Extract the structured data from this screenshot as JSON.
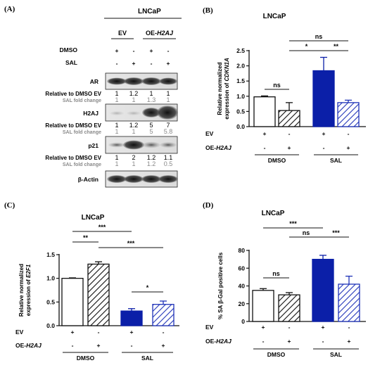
{
  "colors": {
    "blue": "#0b1fa8",
    "stripe_blue": "#1f33b8",
    "black": "#111111",
    "grey": "#8a8a8a"
  },
  "panel_a": {
    "letter": "(A)",
    "cell_line": "LNCaP",
    "group_ev": "EV",
    "group_oe_prefix": "OE-",
    "group_oe_gene": "H2AJ",
    "row_dmso": "DMSO",
    "row_sal": "SAL",
    "dmso_signs": [
      "+",
      "-",
      "+",
      "-"
    ],
    "sal_signs": [
      "-",
      "+",
      "-",
      "+"
    ],
    "blots": [
      {
        "name": "AR",
        "rel_label": "Relative to DMSO EV",
        "rel": [
          "1",
          "1.2",
          "1",
          "1"
        ],
        "fold_label": "SAL fold change",
        "fold": [
          "1",
          "1",
          "1.3",
          "1"
        ]
      },
      {
        "name": "H2AJ",
        "rel_label": "Relative to DMSO EV",
        "rel": [
          "1",
          "1.2",
          "5",
          "7"
        ],
        "fold_label": "SAL fold change",
        "fold": [
          "1",
          "1",
          "5",
          "5.8"
        ]
      },
      {
        "name": "p21",
        "rel_label": "Relative to DMSO EV",
        "rel": [
          "1",
          "2",
          "1.2",
          "1.1"
        ],
        "fold_label": "SAL fold change",
        "fold": [
          "1",
          "1",
          "1.2",
          "0.5"
        ]
      },
      {
        "name": "β-Actin"
      }
    ]
  },
  "chart_data": [
    {
      "panel": "(B)",
      "type": "bar",
      "title": "LNCaP",
      "ylabel_line1": "Relative normalized",
      "ylabel_prefix": "expression of ",
      "ylabel_gene": "CDKN1A",
      "ylim": [
        0,
        2.5
      ],
      "yticks": [
        "0.0",
        "0.5",
        "1.0",
        "1.5",
        "2.0",
        "2.5"
      ],
      "categories": [
        "DMSO EV",
        "DMSO OE-H2AJ",
        "SAL EV",
        "SAL OE-H2AJ"
      ],
      "values": [
        0.98,
        0.53,
        1.84,
        0.79
      ],
      "errors": [
        0.03,
        0.26,
        0.44,
        0.08
      ],
      "ev_signs": [
        "+",
        "-",
        "+",
        "-"
      ],
      "oe_signs": [
        "-",
        "+",
        "-",
        "+"
      ],
      "row_ev": "EV",
      "row_oe_prefix": "OE-",
      "row_oe_gene": "H2AJ",
      "groups": [
        "DMSO",
        "SAL"
      ],
      "significance": [
        {
          "from": 0,
          "to": 1,
          "label": "ns"
        },
        {
          "from": 1,
          "to": 2,
          "label": "*"
        },
        {
          "from": 2,
          "to": 3,
          "label": "**"
        },
        {
          "from": 1,
          "to": 3,
          "label": "ns"
        }
      ]
    },
    {
      "panel": "(C)",
      "type": "bar",
      "title": "LNCaP",
      "ylabel_line1": "Relative normalized",
      "ylabel_prefix": "expression of ",
      "ylabel_gene": "E2F1",
      "ylim": [
        0,
        1.5
      ],
      "yticks": [
        "0.0",
        "0.5",
        "1.0",
        "1.5"
      ],
      "categories": [
        "DMSO EV",
        "DMSO OE-H2AJ",
        "SAL EV",
        "SAL OE-H2AJ"
      ],
      "values": [
        1.0,
        1.3,
        0.31,
        0.45
      ],
      "errors": [
        0.01,
        0.05,
        0.05,
        0.07
      ],
      "ev_signs": [
        "+",
        "-",
        "+",
        "-"
      ],
      "oe_signs": [
        "-",
        "+",
        "-",
        "+"
      ],
      "row_ev": "EV",
      "row_oe_prefix": "OE-",
      "row_oe_gene": "H2AJ",
      "groups": [
        "DMSO",
        "SAL"
      ],
      "significance": [
        {
          "from": 0,
          "to": 1,
          "label": "**"
        },
        {
          "from": 0,
          "to": 2,
          "label": "***"
        },
        {
          "from": 1,
          "to": 3,
          "label": "***"
        },
        {
          "from": 2,
          "to": 3,
          "label": "*"
        }
      ]
    },
    {
      "panel": "(D)",
      "type": "bar",
      "title": "LNCaP",
      "ylabel_line1": "% SA β-Gal positive cells",
      "ylim": [
        0,
        80
      ],
      "yticks": [
        "0",
        "20",
        "40",
        "60",
        "80"
      ],
      "categories": [
        "DMSO EV",
        "DMSO OE-H2AJ",
        "SAL EV",
        "SAL OE-H2AJ"
      ],
      "values": [
        35,
        30,
        70,
        42
      ],
      "errors": [
        2,
        2.5,
        4.5,
        9
      ],
      "ev_signs": [
        "+",
        "-",
        "+",
        "-"
      ],
      "oe_signs": [
        "-",
        "+",
        "-",
        "+"
      ],
      "row_ev": "EV",
      "row_oe_prefix": "OE-",
      "row_oe_gene": "H2AJ",
      "groups": [
        "DMSO",
        "SAL"
      ],
      "significance": [
        {
          "from": 0,
          "to": 1,
          "label": "ns"
        },
        {
          "from": 0,
          "to": 2,
          "label": "***"
        },
        {
          "from": 1,
          "to": 2,
          "label": "ns"
        },
        {
          "from": 2,
          "to": 3,
          "label": "***"
        }
      ]
    }
  ]
}
